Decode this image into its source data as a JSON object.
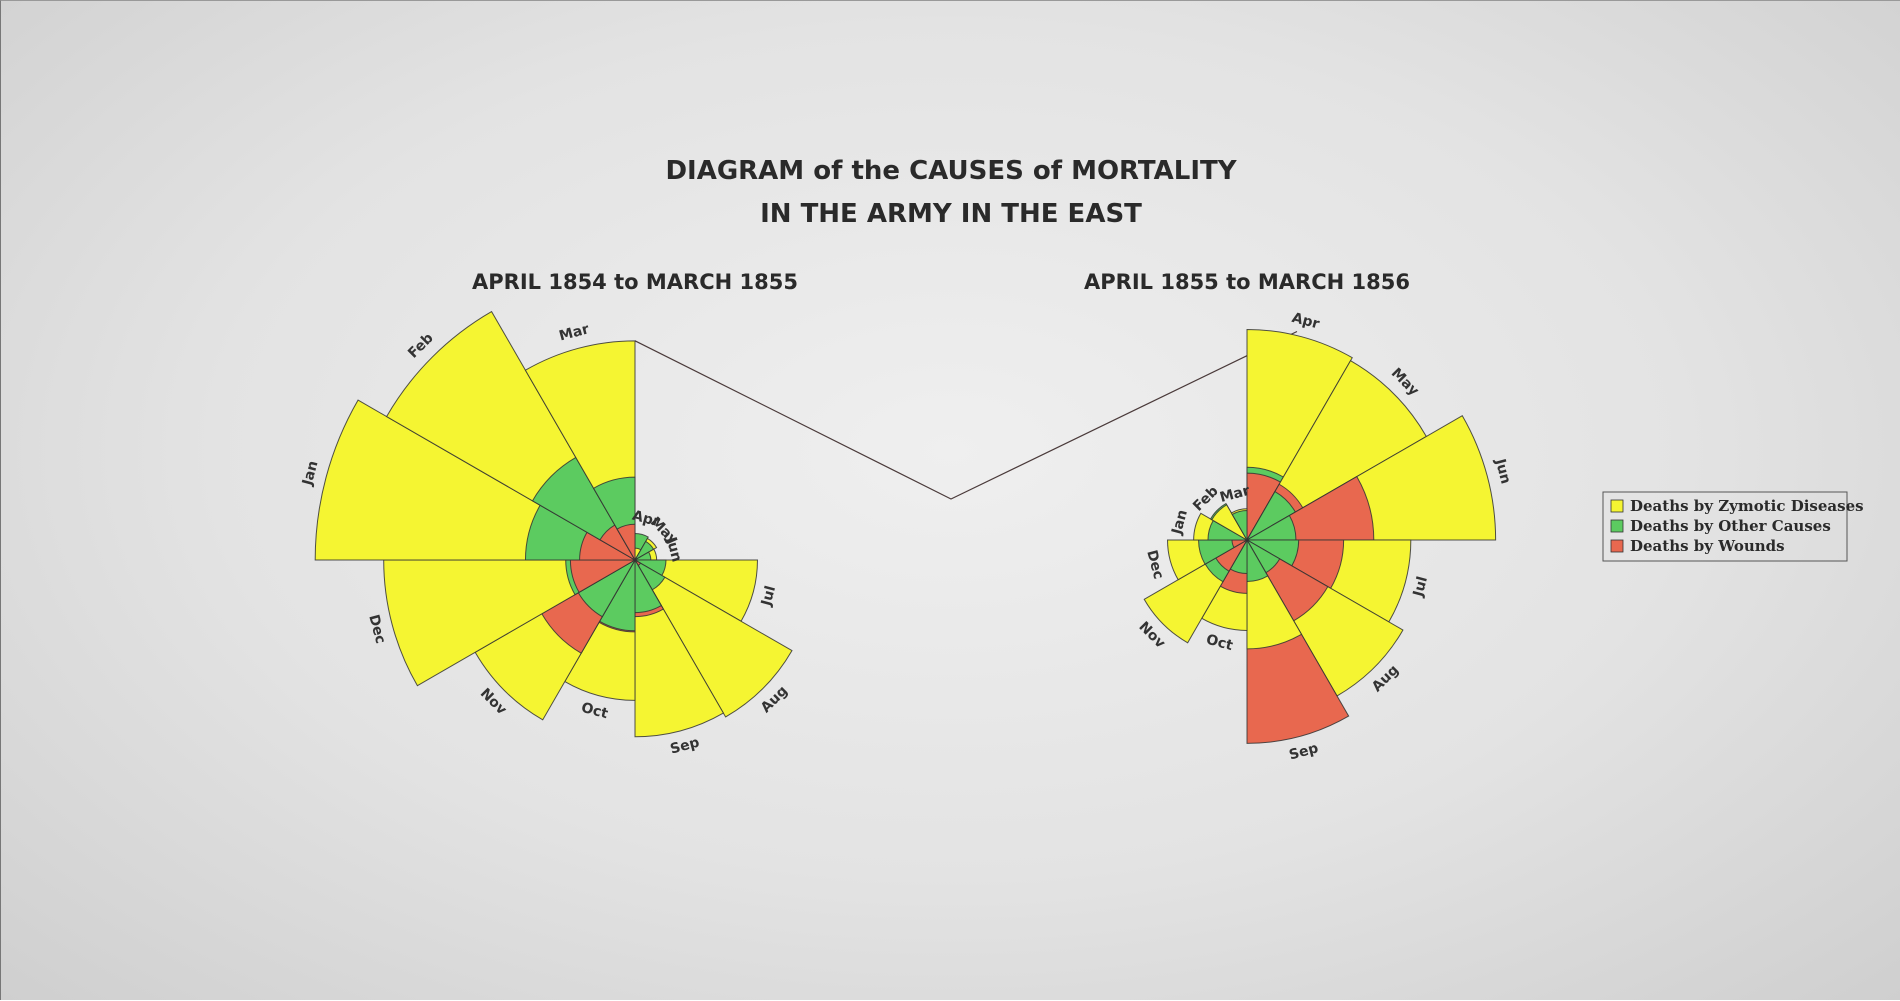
{
  "title_line1": "DIAGRAM of the CAUSES of MORTALITY",
  "title_line2": "IN THE ARMY IN THE EAST",
  "colors": {
    "zymotic": "#f5f532",
    "other": "#5ccb60",
    "wounds": "#e8684f",
    "stroke": "#333333"
  },
  "legend": [
    {
      "key": "zymotic",
      "label": "Deaths by Zymotic Diseases",
      "color": "#f5f532"
    },
    {
      "key": "other",
      "label": "Deaths by Other Causes",
      "color": "#5ccb60"
    },
    {
      "key": "wounds",
      "label": "Deaths by Wounds",
      "color": "#e8684f"
    }
  ],
  "chart_data": [
    {
      "type": "polar-area",
      "title": "APRIL 1854 to MARCH 1855",
      "categories": [
        "Apr",
        "May",
        "Jun",
        "Jul",
        "Aug",
        "Sep",
        "Oct",
        "Nov",
        "Dec",
        "Jan",
        "Feb",
        "Mar"
      ],
      "series": [
        {
          "name": "Deaths by Zymotic Diseases",
          "values": [
            1.4,
            6.2,
            4.7,
            150,
            328.5,
            312.2,
            197,
            340.6,
            631.5,
            1022.8,
            822.8,
            480.3
          ]
        },
        {
          "name": "Deaths by Other Causes",
          "values": [
            7,
            4.6,
            2.5,
            9.6,
            11.9,
            27.7,
            50.1,
            42.8,
            48,
            120,
            140.1,
            68.6
          ]
        },
        {
          "name": "Deaths by Wounds",
          "values": [
            0,
            0,
            0,
            0,
            0.4,
            32.1,
            51.7,
            115.8,
            41.7,
            30.7,
            16.3,
            12.8
          ]
        }
      ]
    },
    {
      "type": "polar-area",
      "title": "APRIL 1855 to MARCH 1856",
      "categories": [
        "Apr",
        "May",
        "Jun",
        "Jul",
        "Aug",
        "Sep",
        "Oct",
        "Nov",
        "Dec",
        "Jan",
        "Feb",
        "Mar"
      ],
      "series": [
        {
          "name": "Deaths by Zymotic Diseases",
          "values": [
            177.5,
            171.8,
            247.6,
            107.5,
            129.9,
            47.5,
            32.8,
            56.4,
            25.3,
            11.4,
            6.6,
            3.9
          ]
        },
        {
          "name": "Deaths by Other Causes",
          "values": [
            21.2,
            12.5,
            9.6,
            10.7,
            5.7,
            6.9,
            4.5,
            9.3,
            9.4,
            6.1,
            7.1,
            3.5
          ]
        },
        {
          "name": "Deaths by Wounds",
          "values": [
            17.9,
            16.6,
            64.4,
            37.4,
            34.9,
            165.6,
            11.4,
            5.2,
            0.9,
            0,
            0,
            0
          ]
        }
      ]
    }
  ]
}
